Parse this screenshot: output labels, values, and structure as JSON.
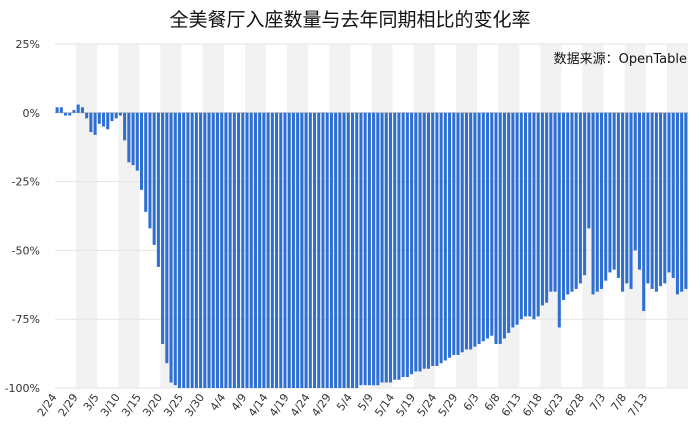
{
  "chart_data": {
    "type": "bar",
    "title": "全美餐厅入座数量与去年同期相比的变化率",
    "source": "数据来源：OpenTable",
    "xlabel": "",
    "ylabel": "",
    "ylim": [
      -100,
      25
    ],
    "y_ticks": [
      {
        "value": 25,
        "label": "25%"
      },
      {
        "value": 0,
        "label": "0%"
      },
      {
        "value": -25,
        "label": "-25%"
      },
      {
        "value": -50,
        "label": "-50%"
      },
      {
        "value": -75,
        "label": "-75%"
      },
      {
        "value": -100,
        "label": "-100%"
      }
    ],
    "x_tick_labels": [
      "2/24",
      "2/29",
      "3/5",
      "3/10",
      "3/15",
      "3/20",
      "3/25",
      "3/30",
      "4/4",
      "4/9",
      "4/14",
      "4/19",
      "4/24",
      "4/29",
      "5/4",
      "5/9",
      "5/14",
      "5/19",
      "5/24",
      "5/29",
      "6/3",
      "6/8",
      "6/13",
      "6/18",
      "6/23",
      "6/28",
      "7/3",
      "7/8",
      "7/13"
    ],
    "x_tick_every": 5,
    "grid": true,
    "legend": "none",
    "bar_color": "#2d6fd2",
    "band_color": "#f2f2f2",
    "values": [
      2,
      2,
      -1,
      -1,
      1,
      3,
      2,
      -2,
      -7,
      -8,
      -4,
      -5,
      -6,
      -3,
      -2,
      -1,
      -10,
      -18,
      -19,
      -21,
      -28,
      -36,
      -42,
      -48,
      -56,
      -84,
      -91,
      -98,
      -99,
      -100,
      -100,
      -100,
      -100,
      -100,
      -100,
      -100,
      -100,
      -100,
      -100,
      -100,
      -100,
      -100,
      -100,
      -100,
      -100,
      -100,
      -100,
      -100,
      -100,
      -100,
      -100,
      -100,
      -100,
      -100,
      -100,
      -100,
      -100,
      -100,
      -100,
      -100,
      -100,
      -100,
      -100,
      -100,
      -100,
      -100,
      -100,
      -100,
      -100,
      -100,
      -100,
      -100,
      -99,
      -99,
      -99,
      -99,
      -99,
      -98,
      -98,
      -98,
      -97,
      -97,
      -96,
      -96,
      -95,
      -94,
      -94,
      -93,
      -93,
      -92,
      -92,
      -91,
      -90,
      -89,
      -88,
      -88,
      -87,
      -86,
      -86,
      -85,
      -84,
      -83,
      -82,
      -81,
      -84,
      -84,
      -82,
      -80,
      -78,
      -77,
      -75,
      -74,
      -74,
      -75,
      -74,
      -70,
      -69,
      -65,
      -65,
      -78,
      -68,
      -66,
      -65,
      -64,
      -62,
      -59,
      -42,
      -66,
      -65,
      -64,
      -61,
      -58,
      -57,
      -60,
      -65,
      -62,
      -64,
      -50,
      -57,
      -72,
      -62,
      -64,
      -65,
      -63,
      -62,
      -58,
      -60,
      -66,
      -65,
      -64
    ]
  }
}
